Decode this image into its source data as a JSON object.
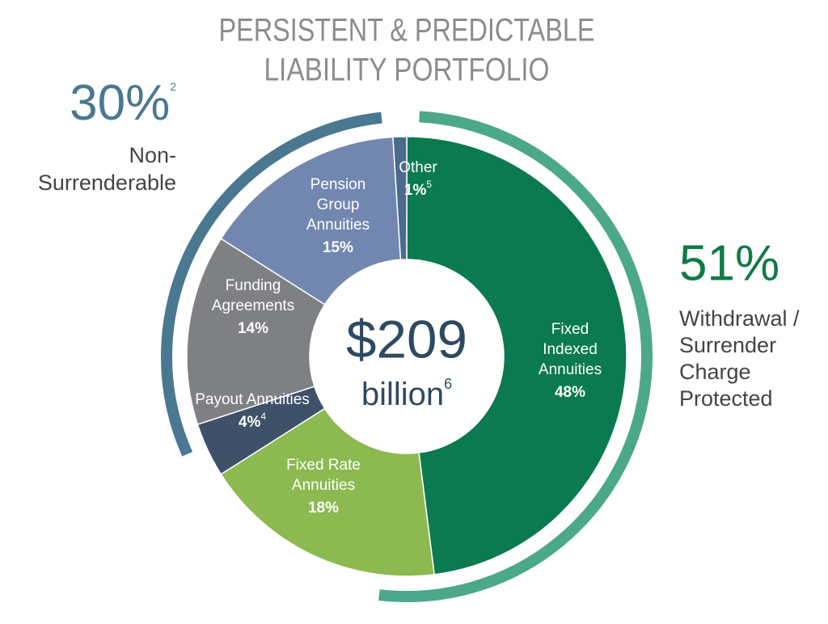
{
  "chart_data": {
    "type": "donut",
    "title": [
      "PERSISTENT & PREDICTABLE",
      "LIABILITY PORTFOLIO"
    ],
    "labels": [
      [
        "Fixed",
        "Indexed",
        "Annuities"
      ],
      [
        "Fixed Rate",
        "Annuities"
      ],
      [
        "Payout Annuities"
      ],
      [
        "Funding",
        "Agreements"
      ],
      [
        "Pension",
        "Group",
        "Annuities"
      ],
      [
        "Other"
      ]
    ],
    "values": [
      48,
      18,
      4,
      14,
      15,
      1
    ],
    "value_labels": [
      "48%",
      "18%",
      "4%",
      "14%",
      "15%",
      "1%"
    ],
    "footnotes": [
      null,
      null,
      "4",
      null,
      null,
      "5"
    ],
    "colors": [
      "#0b7a50",
      "#8cb950",
      "#3e5169",
      "#7f8084",
      "#7187b0",
      "#4b6a8c"
    ],
    "center": {
      "amount": "$209",
      "unit": "billion",
      "footnote": "6"
    },
    "groups": [
      {
        "name_lines": [
          "Non-",
          "Surrenderable"
        ],
        "value": 30,
        "value_label": "30%",
        "footnote": "2",
        "color": "#4a7890"
      },
      {
        "name_lines": [
          "Withdrawal /",
          "Surrender",
          "Charge",
          "Protected"
        ],
        "value": 51,
        "value_label": "51%",
        "color": "#4ca88b",
        "text_color": "#117a46"
      }
    ]
  }
}
